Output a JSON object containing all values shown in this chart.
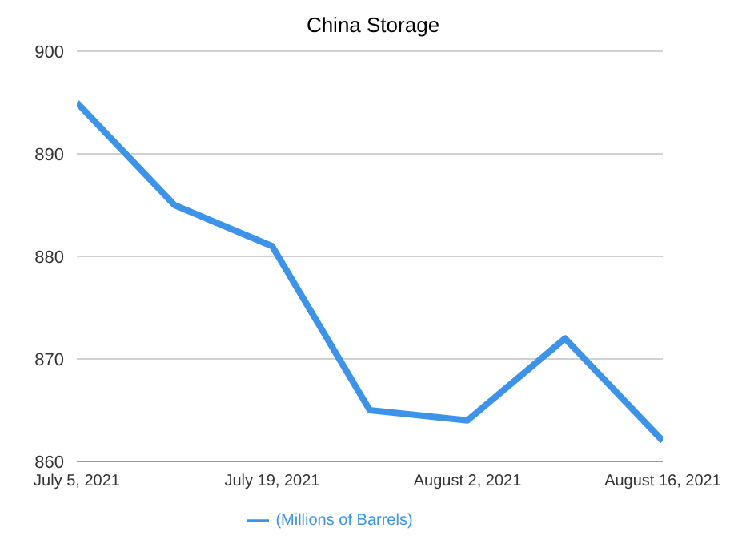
{
  "chart_data": {
    "type": "line",
    "title": "China Storage",
    "x": [
      "2021-07-05",
      "2021-07-12",
      "2021-07-19",
      "2021-07-26",
      "2021-08-02",
      "2021-08-09",
      "2021-08-16"
    ],
    "series": [
      {
        "name": "(Millions of Barrels)",
        "color": "#3d93e8",
        "values": [
          895,
          885,
          881,
          865,
          864,
          872,
          862
        ]
      }
    ],
    "xlim": [
      "2021-07-05",
      "2021-08-16"
    ],
    "xticks": [
      {
        "value": "2021-07-05",
        "label": "July 5, 2021"
      },
      {
        "value": "2021-07-19",
        "label": "July 19, 2021"
      },
      {
        "value": "2021-08-02",
        "label": "August 2, 2021"
      },
      {
        "value": "2021-08-16",
        "label": "August 16, 2021"
      }
    ],
    "ylim": [
      860,
      900
    ],
    "yticks": [
      860,
      870,
      880,
      890,
      900
    ],
    "grid": "y",
    "legend": "bottom",
    "marker": "none",
    "line_style": "solid"
  }
}
